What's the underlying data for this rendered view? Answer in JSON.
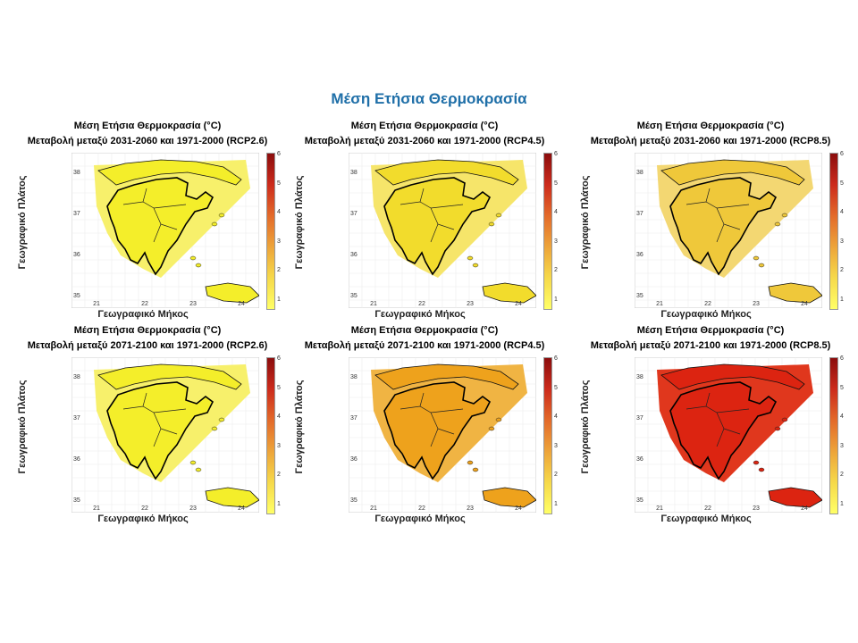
{
  "main_title": "Μέση Ετήσια Θερμοκρασία",
  "panels": [
    {
      "title1": "Μέση Ετήσια Θερμοκρασία (°C)",
      "title2": "Μεταβολή μεταξύ 2031-2060 και 1971-2000 (RCP2.6)",
      "ylabel": "Γεωγραφικό Πλάτος",
      "xlabel": "Γεωγραφικό Μήκος",
      "fill": "#f4ee2a",
      "sea": "#f7f06b"
    },
    {
      "title1": "Μέση Ετήσια Θερμοκρασία (°C)",
      "title2": "Μεταβολή μεταξύ 2031-2060 και 1971-2000 (RCP4.5)",
      "ylabel": "Γεωγραφικό Πλάτος",
      "xlabel": "Γεωγραφικό Μήκος",
      "fill": "#f2dc2c",
      "sea": "#f6e56a"
    },
    {
      "title1": "Μέση Ετήσια Θερμοκρασία (°C)",
      "title2": "Μεταβολή μεταξύ 2031-2060 και 1971-2000 (RCP8.5)",
      "ylabel": "Γεωγραφικό Πλάτος",
      "xlabel": "Γεωγραφικό Μήκος",
      "fill": "#efc83a",
      "sea": "#f3d772"
    },
    {
      "title1": "Μέση Ετήσια Θερμοκρασία (°C)",
      "title2": "Μεταβολή μεταξύ 2071-2100 και 1971-2000 (RCP2.6)",
      "ylabel": "Γεωγραφικό Πλάτος",
      "xlabel": "Γεωγραφικό Μήκος",
      "fill": "#f4ee2a",
      "sea": "#f7f06b"
    },
    {
      "title1": "Μέση Ετήσια Θερμοκρασία (°C)",
      "title2": "Μεταβολή μεταξύ 2071-2100 και 1971-2000 (RCP4.5)",
      "ylabel": "Γεωγραφικό Πλάτος",
      "xlabel": "Γεωγραφικό Μήκος",
      "fill": "#eea21c",
      "sea": "#f0b443"
    },
    {
      "title1": "Μέση Ετήσια Θερμοκρασία (°C)",
      "title2": "Μεταβολή μεταξύ 2071-2100 και 1971-2000 (RCP8.5)",
      "ylabel": "Γεωγραφικό Πλάτος",
      "xlabel": "Γεωγραφικό Μήκος",
      "fill": "#dc2411",
      "sea": "#e0371d"
    }
  ],
  "x_ticks": [
    "21",
    "22",
    "23",
    "24"
  ],
  "y_ticks": [
    "38",
    "37",
    "36",
    "35"
  ],
  "colorbar_ticks": [
    "6",
    "5",
    "4",
    "3",
    "2",
    "1"
  ],
  "colorbar_colors": [
    "#ffff66",
    "#f6d94a",
    "#eda43a",
    "#e36a2a",
    "#cc2b1c",
    "#8b0d0d"
  ]
}
